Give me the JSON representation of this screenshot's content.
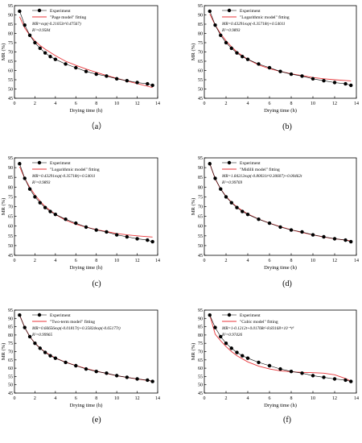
{
  "chart_data": [
    {
      "type": "scatter",
      "panel_label": "（a）",
      "xlabel": "Drying time (h)",
      "ylabel": "MR (%)",
      "xlim": [
        0,
        14
      ],
      "ylim": [
        45,
        95
      ],
      "xticks": [
        0,
        2,
        4,
        6,
        8,
        10,
        12,
        14
      ],
      "yticks": [
        45,
        50,
        55,
        60,
        65,
        70,
        75,
        80,
        85,
        90,
        95
      ],
      "legend": [
        "Experiment",
        "\"Page model\" fitting"
      ],
      "equation": "MR=exp(-0.21053t^0.47567)",
      "r2": "R²=0.9584",
      "series": [
        {
          "name": "Experiment",
          "x": [
            0.5,
            1,
            1.5,
            2,
            2.5,
            3,
            3.5,
            4,
            5,
            6,
            7,
            8,
            9,
            10,
            11,
            12,
            13,
            13.5
          ],
          "y": [
            92,
            84.5,
            79,
            75,
            72,
            69.5,
            67.5,
            66,
            63.5,
            61.5,
            59.5,
            58,
            57,
            55.5,
            54.5,
            53.5,
            52.8,
            52
          ]
        },
        {
          "name": "\"Page model\" fitting",
          "x": [
            0.5,
            1,
            1.5,
            2,
            2.5,
            3,
            4,
            5,
            6,
            7,
            8,
            9,
            10,
            11,
            12,
            13,
            13.5
          ],
          "y": [
            89,
            83,
            79,
            76,
            73.5,
            71.5,
            68,
            65,
            62.8,
            60.8,
            59,
            57.3,
            55.8,
            54.3,
            52.9,
            51.5,
            50.8
          ]
        }
      ]
    },
    {
      "type": "scatter",
      "panel_label": "(b)",
      "xlabel": "Drying time (h)",
      "ylabel": "MR (%)",
      "xlim": [
        0,
        14
      ],
      "ylim": [
        45,
        95
      ],
      "xticks": [
        0,
        2,
        4,
        6,
        8,
        10,
        12,
        14
      ],
      "yticks": [
        45,
        50,
        55,
        60,
        65,
        70,
        75,
        80,
        85,
        90,
        95
      ],
      "legend": [
        "Experiment",
        "\"Logarithmic model\" fitting"
      ],
      "equation": "MR=0.43291exp(-0.35718t)+0.54011",
      "r2": "R²=0.9893",
      "series": [
        {
          "name": "Experiment",
          "x": [
            0.5,
            1,
            1.5,
            2,
            2.5,
            3,
            3.5,
            4,
            5,
            6,
            7,
            8,
            9,
            10,
            11,
            12,
            13,
            13.5
          ],
          "y": [
            92,
            84.5,
            79,
            75,
            72,
            69.5,
            67.5,
            66,
            63.5,
            61.5,
            59.5,
            58,
            57,
            55.5,
            54.5,
            53.5,
            52.8,
            52
          ]
        },
        {
          "name": "\"Logarithmic model\" fitting",
          "x": [
            0.5,
            1,
            1.5,
            2,
            2.5,
            3,
            4,
            5,
            6,
            7,
            8,
            9,
            10,
            11,
            12,
            13,
            13.5
          ],
          "y": [
            90.5,
            84.5,
            79.8,
            76,
            72.8,
            70,
            66,
            63,
            61,
            59.5,
            58.2,
            57.2,
            56.2,
            55.5,
            55,
            54.6,
            54.4
          ]
        }
      ]
    },
    {
      "type": "scatter",
      "panel_label": "(c)",
      "xlabel": "Drying time (h)",
      "ylabel": "MR (%)",
      "xlim": [
        0,
        14
      ],
      "ylim": [
        45,
        95
      ],
      "xticks": [
        0,
        2,
        4,
        6,
        8,
        10,
        12,
        14
      ],
      "yticks": [
        45,
        50,
        55,
        60,
        65,
        70,
        75,
        80,
        85,
        90,
        95
      ],
      "legend": [
        "Experiment",
        "\"Logarithmic model\" fitting"
      ],
      "equation": "MR=0.43291exp(-0.35718t)+0.54011",
      "r2": "R²=0.9893",
      "series": [
        {
          "name": "Experiment",
          "x": [
            0.5,
            1,
            1.5,
            2,
            2.5,
            3,
            3.5,
            4,
            5,
            6,
            7,
            8,
            9,
            10,
            11,
            12,
            13,
            13.5
          ],
          "y": [
            92,
            84.5,
            79,
            75,
            72,
            69.5,
            67.5,
            66,
            63.5,
            61.5,
            59.5,
            58,
            57,
            55.5,
            54.5,
            53.5,
            52.8,
            52
          ]
        },
        {
          "name": "\"Logarithmic model\" fitting",
          "x": [
            0.5,
            1,
            1.5,
            2,
            2.5,
            3,
            4,
            5,
            6,
            7,
            8,
            9,
            10,
            11,
            12,
            13,
            13.5
          ],
          "y": [
            90.5,
            84.5,
            79.8,
            76,
            72.8,
            70,
            66,
            63,
            61,
            59.5,
            58.2,
            57.2,
            56.2,
            55.5,
            55,
            54.6,
            54.4
          ]
        }
      ]
    },
    {
      "type": "scatter",
      "panel_label": "(d)",
      "xlabel": "Drying time (h)",
      "ylabel": "MR (%)",
      "xlim": [
        0,
        14
      ],
      "ylim": [
        45,
        95
      ],
      "xticks": [
        0,
        2,
        4,
        6,
        8,
        10,
        12,
        14
      ],
      "yticks": [
        45,
        50,
        55,
        60,
        65,
        70,
        75,
        80,
        85,
        90,
        95
      ],
      "legend": [
        "Experiment",
        "\"Midilli model\" fitting"
      ],
      "equation": "MR=1.84212exp(-0.80031t^0.30607)+0.00462t",
      "r2": "R²=0.99769",
      "series": [
        {
          "name": "Experiment",
          "x": [
            0.5,
            1,
            1.5,
            2,
            2.5,
            3,
            3.5,
            4,
            5,
            6,
            7,
            8,
            9,
            10,
            11,
            12,
            13,
            13.5
          ],
          "y": [
            92,
            84.5,
            79,
            75,
            72,
            69.5,
            67.5,
            66,
            63.5,
            61.5,
            59.5,
            58,
            57,
            55.5,
            54.5,
            53.5,
            52.8,
            52
          ]
        },
        {
          "name": "\"Midilli model\" fitting",
          "x": [
            0.5,
            1,
            1.5,
            2,
            2.5,
            3,
            4,
            5,
            6,
            7,
            8,
            9,
            10,
            11,
            12,
            13,
            13.5
          ],
          "y": [
            92,
            84.2,
            79,
            75.2,
            72.2,
            69.8,
            66.2,
            63.6,
            61.5,
            59.7,
            58.1,
            56.7,
            55.5,
            54.4,
            53.5,
            52.8,
            52.4
          ]
        }
      ]
    },
    {
      "type": "scatter",
      "panel_label": "(e)",
      "xlabel": "Drying time (h)",
      "ylabel": "MR (%)",
      "xlim": [
        0,
        14
      ],
      "ylim": [
        45,
        95
      ],
      "xticks": [
        0,
        2,
        4,
        6,
        8,
        10,
        12,
        14
      ],
      "yticks": [
        45,
        50,
        55,
        60,
        65,
        70,
        75,
        80,
        85,
        90,
        95
      ],
      "legend": [
        "Experiment",
        "\"Two-term model\" fitting"
      ],
      "equation": "MR=0.66656exp(-0.01817t)+0.35824exp(-0.65177t)",
      "r2": "R²=0.99965",
      "series": [
        {
          "name": "Experiment",
          "x": [
            0.5,
            1,
            1.5,
            2,
            2.5,
            3,
            3.5,
            4,
            5,
            6,
            7,
            8,
            9,
            10,
            11,
            12,
            13,
            13.5
          ],
          "y": [
            92,
            84.5,
            79,
            75,
            72,
            69.5,
            67.5,
            66,
            63.5,
            61.5,
            59.5,
            58,
            57,
            55.5,
            54.5,
            53.5,
            52.8,
            52
          ]
        },
        {
          "name": "\"Two-term model\" fitting",
          "x": [
            0.5,
            1,
            1.5,
            2,
            2.5,
            3,
            4,
            5,
            6,
            7,
            8,
            9,
            10,
            11,
            12,
            13,
            13.5
          ],
          "y": [
            92,
            84.5,
            79,
            75.1,
            72.1,
            69.7,
            66.1,
            63.6,
            61.6,
            59.8,
            58.2,
            56.8,
            55.5,
            54.4,
            53.5,
            52.6,
            52.2
          ]
        }
      ]
    },
    {
      "type": "scatter",
      "panel_label": "(f)",
      "xlabel": "Drying time (h)",
      "ylabel": "MR (%)",
      "xlim": [
        0,
        14
      ],
      "ylim": [
        45,
        95
      ],
      "xticks": [
        0,
        2,
        4,
        6,
        8,
        10,
        12,
        14
      ],
      "yticks": [
        45,
        50,
        55,
        60,
        65,
        70,
        75,
        80,
        85,
        90,
        95
      ],
      "legend": [
        "Experiment",
        "\"Cubic model\" fitting"
      ],
      "equation": "MR=1-0.1212t+0.01768t²-8.83168×10⁻⁴t³",
      "r2": "R²=0.97426",
      "series": [
        {
          "name": "Experiment",
          "x": [
            0.5,
            1,
            1.5,
            2,
            2.5,
            3,
            3.5,
            4,
            5,
            6,
            7,
            8,
            9,
            10,
            11,
            12,
            13,
            13.5
          ],
          "y": [
            92,
            84.5,
            79,
            75,
            72,
            69.5,
            67.5,
            66,
            63.5,
            61.5,
            59.5,
            58,
            57,
            55.5,
            54.5,
            53.5,
            52.8,
            52
          ]
        },
        {
          "name": "\"Cubic model\" fitting",
          "x": [
            0.5,
            1,
            1.5,
            2,
            2.5,
            3,
            4,
            5,
            6,
            7,
            8,
            9,
            10,
            11,
            12,
            13,
            13.5
          ],
          "y": [
            92,
            80.5,
            76.5,
            73,
            70,
            67.5,
            63.8,
            61.2,
            59.5,
            58.4,
            57.8,
            57.5,
            57.3,
            57,
            56,
            53.8,
            52.2
          ]
        }
      ]
    }
  ],
  "colors": {
    "experiment": "#000000",
    "fit": "#e8363a",
    "axis": "#000000"
  }
}
